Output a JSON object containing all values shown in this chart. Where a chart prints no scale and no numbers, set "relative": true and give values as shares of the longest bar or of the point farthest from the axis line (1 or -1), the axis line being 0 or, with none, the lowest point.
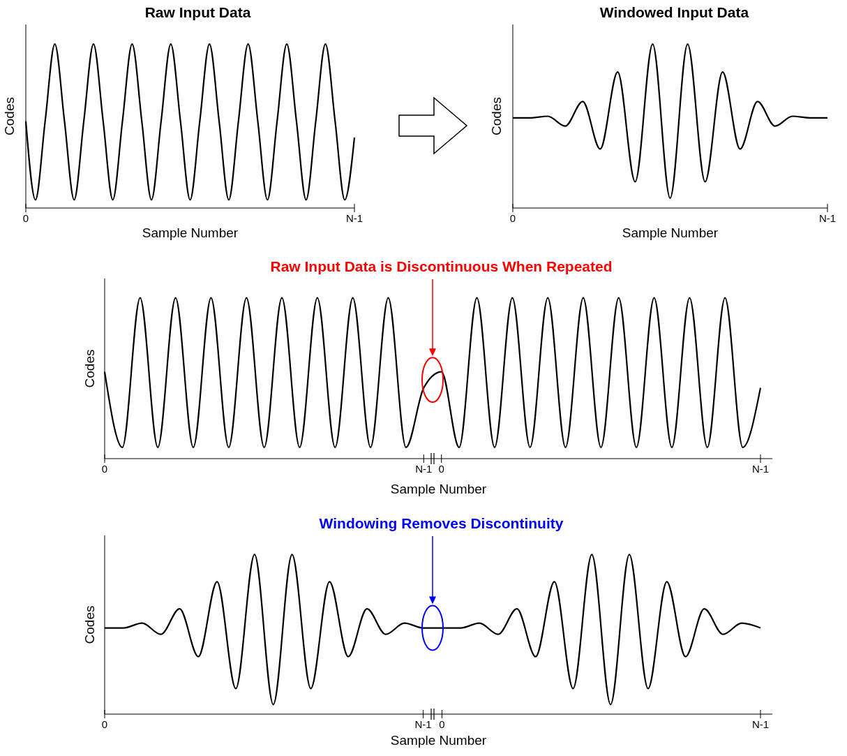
{
  "chart_data": [
    {
      "type": "line",
      "title": "Raw Input Data",
      "xlabel": "Sample Number",
      "ylabel": "Codes",
      "relative": true,
      "categories": [
        "0",
        null,
        null,
        null,
        null,
        null,
        null,
        null,
        null,
        null,
        null,
        null,
        null,
        null,
        null,
        null,
        null,
        null,
        null,
        null,
        null,
        null,
        null,
        null,
        null,
        null,
        null,
        null,
        null,
        null,
        null,
        null,
        null,
        null,
        "N-1"
      ],
      "series": [
        {
          "color": "#000000",
          "values": [
            0.53,
            0.05,
            0.53,
            1,
            0.53,
            0.05,
            0.53,
            1,
            0.53,
            0.05,
            0.53,
            1,
            0.53,
            0.05,
            0.53,
            1,
            0.53,
            0.05,
            0.53,
            1,
            0.53,
            0.05,
            0.53,
            1,
            0.53,
            0.05,
            0.53,
            1,
            0.53,
            0.05,
            0.53,
            1,
            0.53,
            0.05,
            0.43
          ]
        }
      ]
    },
    {
      "type": "line",
      "title": "Windowed Input Data",
      "xlabel": "Sample Number",
      "ylabel": "Codes",
      "relative": true,
      "categories": [
        "0",
        null,
        null,
        null,
        null,
        null,
        null,
        null,
        null,
        null,
        null,
        null,
        null,
        null,
        null,
        null,
        null,
        null,
        "N-1"
      ],
      "series": [
        {
          "color": "#000000",
          "values": [
            0.55,
            0.55,
            0.56,
            0.5,
            0.65,
            0.36,
            0.83,
            0.16,
            1,
            0.06,
            1,
            0.16,
            0.83,
            0.36,
            0.65,
            0.5,
            0.56,
            0.55,
            0.55
          ]
        }
      ]
    },
    {
      "type": "line",
      "xlabel": "Sample Number",
      "ylabel": "Codes",
      "relative": true,
      "annotations": [
        "Raw Input Data is Discontinuous When Repeated"
      ],
      "categories": [
        "0",
        null,
        null,
        null,
        null,
        null,
        null,
        null,
        null,
        null,
        null,
        null,
        null,
        null,
        null,
        null,
        null,
        null,
        "N-1",
        "0",
        null,
        null,
        null,
        null,
        null,
        null,
        null,
        null,
        null,
        null,
        null,
        null,
        null,
        null,
        null,
        null,
        null,
        "N-1"
      ],
      "series": [
        {
          "color": "#000000",
          "values": [
            0.54,
            0.07,
            1,
            0.07,
            1,
            0.07,
            1,
            0.07,
            1,
            0.07,
            1,
            0.07,
            1,
            0.07,
            1,
            0.07,
            1,
            0.07,
            0.44,
            0.54,
            0.07,
            1,
            0.07,
            1,
            0.07,
            1,
            0.07,
            1,
            0.07,
            1,
            0.07,
            1,
            0.07,
            1,
            0.07,
            1,
            0.07,
            0.44
          ]
        }
      ]
    },
    {
      "type": "line",
      "xlabel": "Sample Number",
      "ylabel": "Codes",
      "relative": true,
      "annotations": [
        "Windowing Removes Discontinuity"
      ],
      "categories": [
        "0",
        null,
        null,
        null,
        null,
        null,
        null,
        null,
        null,
        null,
        null,
        null,
        null,
        null,
        null,
        null,
        null,
        "N-1",
        "0",
        null,
        null,
        null,
        null,
        null,
        null,
        null,
        null,
        null,
        null,
        null,
        null,
        null,
        null,
        null,
        null,
        "N-1"
      ],
      "series": [
        {
          "color": "#000000",
          "values": [
            0.54,
            0.54,
            0.57,
            0.5,
            0.66,
            0.36,
            0.83,
            0.16,
            1,
            0.06,
            1,
            0.16,
            0.83,
            0.36,
            0.66,
            0.5,
            0.57,
            0.54,
            0.54,
            0.54,
            0.57,
            0.5,
            0.66,
            0.36,
            0.83,
            0.16,
            1,
            0.06,
            1,
            0.16,
            0.83,
            0.36,
            0.66,
            0.5,
            0.57,
            0.54
          ]
        }
      ]
    }
  ]
}
